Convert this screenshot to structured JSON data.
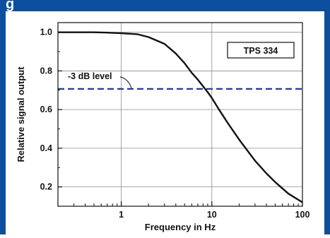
{
  "header": {
    "fragment": "g"
  },
  "chart_data": {
    "type": "line",
    "xlabel": "Frequency in Hz",
    "ylabel": "Relative signal output",
    "xscale": "log",
    "xlim": [
      0.2,
      100
    ],
    "ylim": [
      0.1,
      1.05
    ],
    "grid": true,
    "x_ticks": [
      1,
      10,
      100
    ],
    "x_tick_labels": [
      "1",
      "10",
      "100"
    ],
    "y_ticks": [
      0.2,
      0.4,
      0.6,
      0.8,
      1.0
    ],
    "y_tick_labels": [
      "0.2",
      "0.4",
      "0.6",
      "0.8",
      "1.0"
    ],
    "series": [
      {
        "x": [
          0.2,
          0.3,
          0.5,
          0.7,
          1.0,
          1.5,
          2.0,
          3.0,
          4.0,
          5.0,
          6.0,
          7.0,
          8.0,
          9.0,
          10.0,
          12.0,
          15.0,
          20.0,
          30.0,
          40.0,
          50.0,
          70.0,
          100.0
        ],
        "y": [
          1.0,
          1.0,
          1.0,
          0.998,
          0.995,
          0.99,
          0.975,
          0.94,
          0.89,
          0.84,
          0.79,
          0.755,
          0.72,
          0.69,
          0.66,
          0.6,
          0.53,
          0.445,
          0.335,
          0.27,
          0.225,
          0.165,
          0.12
        ],
        "color": "#111111"
      }
    ],
    "reference_line": {
      "y": 0.707,
      "label": "-3 dB level",
      "color": "#1c3f9b",
      "style": "dashed"
    },
    "annotation_box": "TPS 334"
  }
}
